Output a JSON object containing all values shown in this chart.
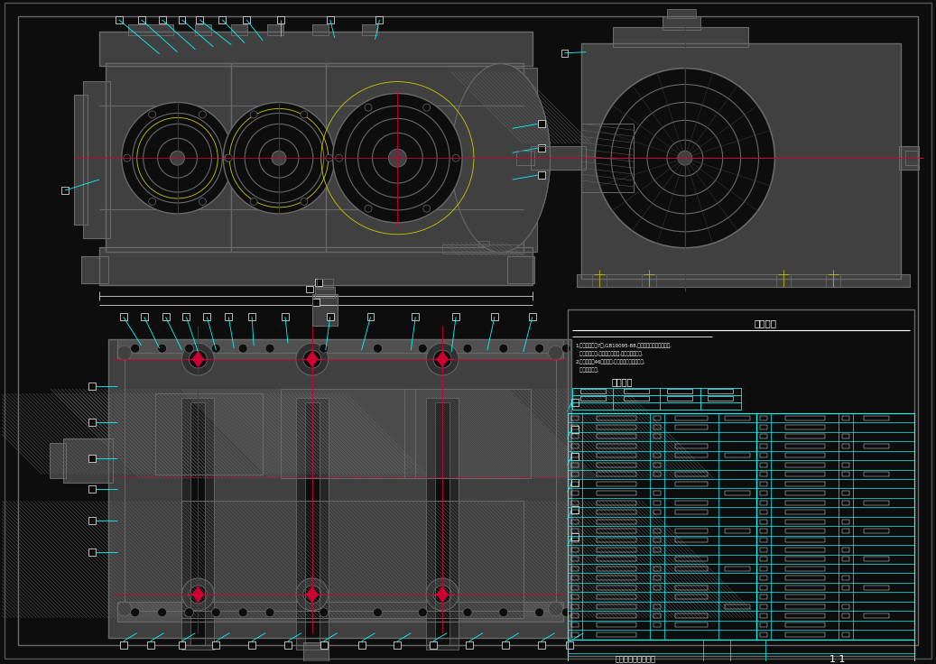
{
  "bg_color": "#0d0d0d",
  "border_color": "#696969",
  "cyan_color": "#00FFFF",
  "white_color": "#FFFFFF",
  "yellow_color": "#CCCC00",
  "red_color": "#CC0033",
  "gray_color": "#696969",
  "dark_gray": "#404040",
  "light_gray": "#909090",
  "tech_req_title": "技术要求",
  "tech_char_title": "技术特性",
  "part_name": "两级圆柱齿轮减速器",
  "sheet_num": "1 1"
}
